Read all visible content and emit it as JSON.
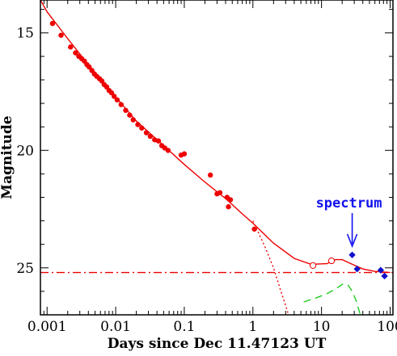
{
  "chart_data": {
    "type": "scatter",
    "xlabel": "Days since Dec 11.47123 UT",
    "ylabel": "Magnitude",
    "x_scale": "log",
    "xlim": [
      0.0008,
      110
    ],
    "ylim": [
      27,
      13.6
    ],
    "y_inverted": true,
    "x_tick_labels": [
      "0.001",
      "0.01",
      "0.1",
      "1",
      "10",
      "100"
    ],
    "y_tick_labels": [
      "15",
      "20",
      "25"
    ],
    "annotation": {
      "text": "spectrum",
      "x": 28,
      "color": "#1111ee"
    },
    "colors": {
      "red": "#ee0000",
      "blue": "#1111cc",
      "green": "#22cc22",
      "frame": "#000000"
    },
    "series": [
      {
        "marker": "filled-circle",
        "color": "#ee0000",
        "points": [
          [
            0.0012,
            14.6
          ],
          [
            0.0016,
            15.1
          ],
          [
            0.0022,
            15.6
          ],
          [
            0.0026,
            15.85
          ],
          [
            0.0029,
            16.0
          ],
          [
            0.0032,
            16.1
          ],
          [
            0.0035,
            16.2
          ],
          [
            0.0038,
            16.35
          ],
          [
            0.0041,
            16.45
          ],
          [
            0.0045,
            16.6
          ],
          [
            0.0049,
            16.75
          ],
          [
            0.0053,
            16.85
          ],
          [
            0.0058,
            16.95
          ],
          [
            0.0063,
            17.05
          ],
          [
            0.0068,
            17.2
          ],
          [
            0.0074,
            17.3
          ],
          [
            0.008,
            17.45
          ],
          [
            0.0087,
            17.55
          ],
          [
            0.0095,
            17.7
          ],
          [
            0.0105,
            17.85
          ],
          [
            0.012,
            18.05
          ],
          [
            0.014,
            18.3
          ],
          [
            0.016,
            18.5
          ],
          [
            0.018,
            18.7
          ],
          [
            0.021,
            18.9
          ],
          [
            0.024,
            19.05
          ],
          [
            0.028,
            19.25
          ],
          [
            0.032,
            19.4
          ],
          [
            0.037,
            19.55
          ],
          [
            0.042,
            19.6
          ],
          [
            0.047,
            19.8
          ],
          [
            0.052,
            19.9
          ],
          [
            0.058,
            20.0
          ],
          [
            0.09,
            20.2
          ],
          [
            0.1,
            20.15
          ],
          [
            0.24,
            21.05
          ],
          [
            0.3,
            21.85
          ],
          [
            0.33,
            21.8
          ],
          [
            0.42,
            22.0
          ],
          [
            0.44,
            22.4
          ],
          [
            0.47,
            22.1
          ],
          [
            1.05,
            23.35
          ]
        ]
      },
      {
        "marker": "open-circle",
        "color": "#ee0000",
        "points": [
          [
            7.5,
            24.9
          ],
          [
            14,
            24.7
          ]
        ]
      },
      {
        "marker": "filled-diamond",
        "color": "#1111cc",
        "points": [
          [
            28,
            24.45
          ],
          [
            33,
            25.05
          ],
          [
            73,
            25.1
          ],
          [
            83,
            25.35
          ]
        ]
      }
    ],
    "lines": [
      {
        "style": "solid",
        "color": "#ee0000",
        "points": [
          [
            0.0008,
            13.6
          ],
          [
            0.001,
            14.1
          ],
          [
            0.002,
            15.25
          ],
          [
            0.004,
            16.35
          ],
          [
            0.008,
            17.4
          ],
          [
            0.02,
            18.75
          ],
          [
            0.05,
            19.8
          ],
          [
            0.1,
            20.6
          ],
          [
            0.2,
            21.35
          ],
          [
            0.4,
            22.05
          ],
          [
            0.7,
            22.7
          ],
          [
            1,
            23.1
          ],
          [
            2,
            23.95
          ],
          [
            4,
            24.6
          ],
          [
            7,
            24.85
          ],
          [
            12,
            24.82
          ],
          [
            16,
            24.65
          ],
          [
            20,
            24.65
          ],
          [
            28,
            24.85
          ],
          [
            40,
            25.05
          ],
          [
            60,
            25.15
          ],
          [
            100,
            25.2
          ]
        ]
      },
      {
        "style": "dotted",
        "color": "#ee0000",
        "points": [
          [
            1,
            23.0
          ],
          [
            1.5,
            24.1
          ],
          [
            2,
            25.0
          ],
          [
            2.5,
            25.9
          ],
          [
            3,
            26.6
          ],
          [
            3.3,
            27.0
          ]
        ]
      },
      {
        "style": "dash-dot",
        "color": "#ee0000",
        "points": [
          [
            0.0008,
            25.2
          ],
          [
            110,
            25.2
          ]
        ]
      },
      {
        "style": "dashed",
        "color": "#22cc22",
        "points": [
          [
            5.5,
            26.45
          ],
          [
            8,
            26.3
          ],
          [
            12,
            26.1
          ],
          [
            16,
            25.9
          ],
          [
            20,
            25.7
          ],
          [
            24,
            25.7
          ],
          [
            28,
            26.0
          ],
          [
            32,
            26.4
          ],
          [
            36,
            26.9
          ],
          [
            37,
            27.0
          ]
        ]
      }
    ]
  }
}
